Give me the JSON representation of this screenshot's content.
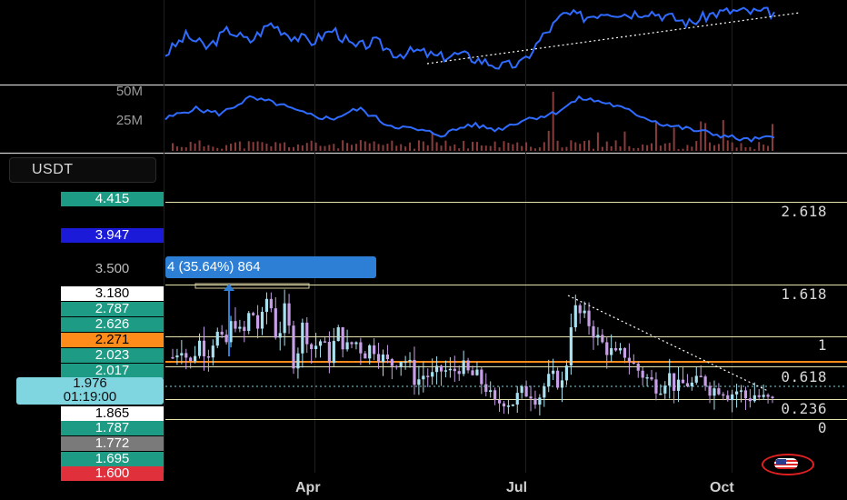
{
  "currency": "USDT",
  "colors": {
    "background": "#000000",
    "teal": "#1e9b84",
    "blue_label": "#1a1ad8",
    "orange": "#ff8c1a",
    "gray_label": "#7a7a7a",
    "red": "#e0303c",
    "fib_line": "#e8e2b0",
    "indicator_line": "#2f6bff",
    "candle_up": "#a8e2f0",
    "candle_down": "#c7a0e8",
    "volume": "#8a3c3c"
  },
  "measure_tooltip": "4 (35.64%) 864",
  "countdown": {
    "price": "1.976",
    "time": "01:19:00"
  },
  "volume_labels": [
    "50M",
    "25M"
  ],
  "price_labels": [
    {
      "text": "4.415",
      "style": "teal",
      "value": 4.415
    },
    {
      "text": "3.947",
      "style": "blue",
      "value": 3.947
    },
    {
      "text": "3.500",
      "style": "plain",
      "value": 3.5
    },
    {
      "text": "3.180",
      "style": "white",
      "value": 3.18
    },
    {
      "text": "2.787",
      "style": "teal",
      "value": 2.787
    },
    {
      "text": "2.626",
      "style": "teal",
      "value": 2.626
    },
    {
      "text": "2.271",
      "style": "orange",
      "value": 2.271
    },
    {
      "text": "2.023",
      "style": "teal",
      "value": 2.023
    },
    {
      "text": "2.017",
      "style": "teal",
      "value": 2.017
    },
    {
      "text": "1.865",
      "style": "white",
      "value": 1.865
    },
    {
      "text": "1.787",
      "style": "teal",
      "value": 1.787
    },
    {
      "text": "1.772",
      "style": "gray",
      "value": 1.772
    },
    {
      "text": "1.695",
      "style": "teal",
      "value": 1.695
    },
    {
      "text": "1.600",
      "style": "red",
      "value": 1.6
    }
  ],
  "fib_levels": [
    "2.618",
    "1.618",
    "1",
    "0.618",
    "0.236",
    "0"
  ],
  "x_months": [
    "Apr",
    "Jul",
    "Oct"
  ],
  "chart_data": {
    "type": "line",
    "x_axis_ticks": [
      "Apr",
      "Jul",
      "Oct"
    ],
    "price_axis_ticks": [
      "3.500"
    ],
    "fib_levels": [
      2.618,
      1.618,
      1,
      0.618,
      0.236,
      0
    ],
    "price_series": [
      2.3,
      2.45,
      2.2,
      2.5,
      2.35,
      2.6,
      2.4,
      2.8,
      2.5,
      2.9,
      2.6,
      3.1,
      2.5,
      2.9,
      2.2,
      2.7,
      2.4,
      2.5,
      2.3,
      2.6,
      2.4,
      2.5,
      2.35,
      2.45,
      2.3,
      2.2,
      2.3,
      2.25,
      2.0,
      2.1,
      2.05,
      2.15,
      2.1,
      2.2,
      2.1,
      2.05,
      1.95,
      1.7,
      1.8,
      1.75,
      1.85,
      1.9,
      1.8,
      2.0,
      2.05,
      1.95,
      2.9,
      2.8,
      2.7,
      2.5,
      2.4,
      2.3,
      2.35,
      2.2,
      2.1,
      2.0,
      1.95,
      2.1,
      1.9,
      2.0,
      1.95,
      2.05,
      1.9,
      1.95,
      1.85,
      1.9,
      1.8,
      1.85,
      1.78,
      1.76
    ],
    "oscillator_upper": [
      0.3,
      0.6,
      0.4,
      0.7,
      0.5,
      0.8,
      0.6,
      0.5,
      0.7,
      0.4,
      0.5,
      0.3,
      0.35,
      0.25,
      0.3,
      0.2,
      0.1,
      0.15,
      0.6,
      0.95,
      0.9,
      1.0,
      0.95,
      1.0,
      0.9,
      0.8,
      0.95,
      1.0,
      0.98,
      0.97
    ],
    "oscillator_lower": [
      0.5,
      0.7,
      0.6,
      0.9,
      0.8,
      0.6,
      0.5,
      0.7,
      0.4,
      0.3,
      0.2,
      0.4,
      0.3,
      0.5,
      0.6,
      0.9,
      0.8,
      0.6,
      0.4,
      0.3,
      0.2,
      0.1,
      0.15
    ]
  }
}
